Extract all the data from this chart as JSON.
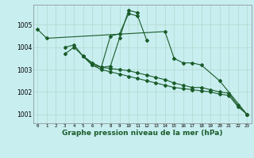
{
  "xlabel": "Graphe pression niveau de la mer (hPa)",
  "background_color": "#c8eef0",
  "grid_color": "#b0d8cc",
  "line_color": "#1a5c2a",
  "x_ticks": [
    0,
    1,
    2,
    3,
    4,
    5,
    6,
    7,
    8,
    9,
    10,
    11,
    12,
    13,
    14,
    15,
    16,
    17,
    18,
    19,
    20,
    21,
    22,
    23
  ],
  "ylim": [
    1000.6,
    1005.9
  ],
  "yticks": [
    1001,
    1002,
    1003,
    1004,
    1005
  ],
  "series": [
    [
      1004.8,
      1004.4,
      null,
      null,
      null,
      null,
      null,
      null,
      null,
      null,
      null,
      null,
      null,
      null,
      1004.7,
      1003.5,
      1003.3,
      1003.3,
      1003.2,
      null,
      1002.5,
      null,
      null,
      1001.0
    ],
    [
      null,
      null,
      null,
      1003.7,
      1004.0,
      1003.6,
      1003.2,
      1003.1,
      1004.5,
      1004.6,
      1005.5,
      1005.4,
      1004.3,
      null,
      null,
      null,
      null,
      null,
      null,
      null,
      null,
      null,
      null,
      null
    ],
    [
      null,
      null,
      null,
      1004.0,
      1004.1,
      1003.6,
      1003.3,
      1003.1,
      1003.15,
      1004.4,
      1005.65,
      1005.55,
      null,
      null,
      null,
      null,
      null,
      null,
      null,
      null,
      null,
      null,
      null,
      null
    ],
    [
      null,
      null,
      null,
      null,
      null,
      1003.6,
      1003.3,
      1003.1,
      1003.05,
      1003.0,
      1002.95,
      1002.85,
      1002.75,
      1002.65,
      1002.55,
      1002.4,
      1002.3,
      1002.2,
      1002.2,
      1002.1,
      1002.0,
      1001.95,
      1001.4,
      1001.0
    ],
    [
      null,
      null,
      null,
      null,
      null,
      1003.6,
      1003.2,
      1003.0,
      1002.9,
      1002.8,
      1002.7,
      1002.6,
      1002.5,
      1002.4,
      1002.3,
      1002.2,
      1002.15,
      1002.1,
      1002.05,
      1002.0,
      1001.9,
      1001.85,
      1001.35,
      1001.0
    ]
  ]
}
